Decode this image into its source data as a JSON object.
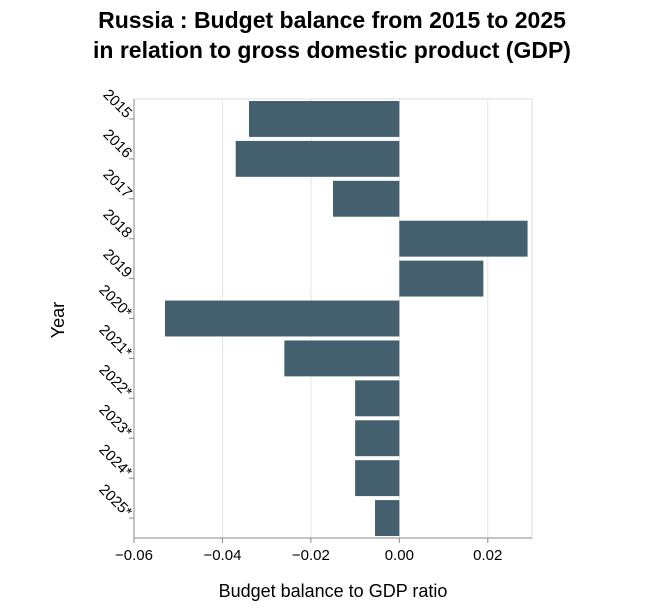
{
  "chart_data": {
    "type": "bar",
    "orientation": "horizontal",
    "title_line1": "Russia : Budget balance from 2015 to 2025",
    "title_line2": "in relation to gross domestic product (GDP)",
    "xlabel": "Budget balance to GDP ratio",
    "ylabel": "Year",
    "categories": [
      "2015",
      "2016",
      "2017",
      "2018",
      "2019",
      "2020*",
      "2021*",
      "2022*",
      "2023*",
      "2024*",
      "2025*"
    ],
    "values": [
      -0.034,
      -0.037,
      -0.015,
      0.029,
      0.019,
      -0.053,
      -0.026,
      -0.01,
      -0.01,
      -0.01,
      -0.0055
    ],
    "xlim": [
      -0.06,
      0.03
    ],
    "xticks": [
      -0.06,
      -0.04,
      -0.02,
      0.0,
      0.02
    ],
    "xtick_labels": [
      "−0.06",
      "−0.04",
      "−0.02",
      "0.00",
      "0.02"
    ],
    "grid": true,
    "bar_color": "#44606e"
  }
}
